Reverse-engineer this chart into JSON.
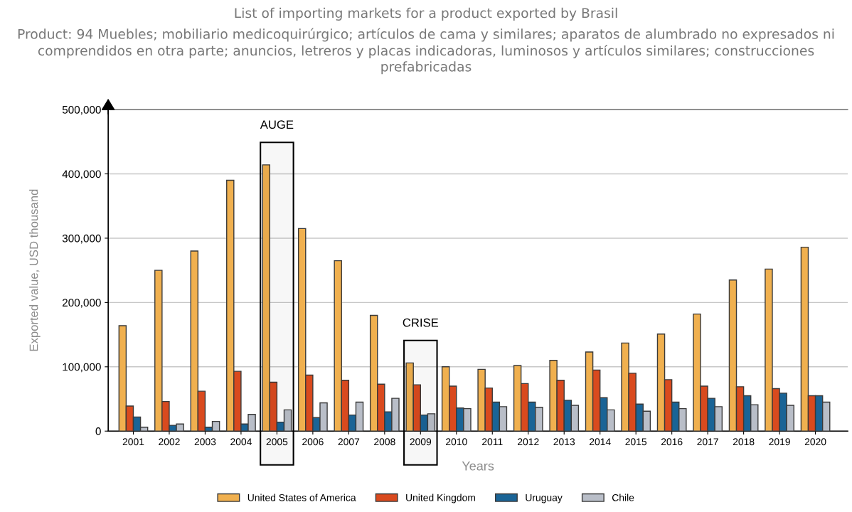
{
  "chart_data": {
    "type": "bar",
    "title": "List of importing markets for a product exported by Brasil",
    "subtitle": "Product: 94 Muebles; mobiliario medicoquirúrgico; artículos de cama y similares; aparatos de alumbrado no expresados ni comprendidos en otra parte; anuncios, letreros y placas indicadoras, luminosos y artículos similares; construcciones prefabricadas",
    "xlabel": "Years",
    "ylabel": "Exported value, USD thousand",
    "categories": [
      "2001",
      "2002",
      "2003",
      "2004",
      "2005",
      "2006",
      "2007",
      "2008",
      "2009",
      "2010",
      "2011",
      "2012",
      "2013",
      "2014",
      "2015",
      "2016",
      "2017",
      "2018",
      "2019",
      "2020"
    ],
    "series": [
      {
        "name": "United States of America",
        "color": "#f0b04f",
        "values": [
          164000,
          250000,
          280000,
          390000,
          414000,
          315000,
          265000,
          180000,
          106000,
          100000,
          96000,
          102000,
          110000,
          123000,
          137000,
          151000,
          182000,
          235000,
          252000,
          286000
        ]
      },
      {
        "name": "United Kingdom",
        "color": "#d94a1e",
        "values": [
          39000,
          46000,
          62000,
          93000,
          76000,
          87000,
          79000,
          73000,
          72000,
          70000,
          67000,
          74000,
          79000,
          95000,
          90000,
          80000,
          70000,
          69000,
          66000,
          55000
        ]
      },
      {
        "name": "Uruguay",
        "color": "#1a6496",
        "values": [
          22000,
          9000,
          6000,
          11000,
          14000,
          21000,
          25000,
          30000,
          25000,
          36000,
          45000,
          45000,
          48000,
          52000,
          42000,
          45000,
          51000,
          55000,
          59000,
          55000
        ]
      },
      {
        "name": "Chile",
        "color": "#b9bec8",
        "values": [
          6000,
          11000,
          15000,
          26000,
          33000,
          44000,
          45000,
          51000,
          27000,
          35000,
          38000,
          37000,
          40000,
          33000,
          31000,
          35000,
          38000,
          41000,
          40000,
          45000
        ]
      }
    ],
    "ylim": [
      0,
      500000
    ],
    "yticks": [
      0,
      {
        "value": 100000,
        "label": "100,000"
      },
      {
        "value": 200000,
        "label": "200,000"
      },
      {
        "value": 300000,
        "label": "300,000"
      },
      {
        "value": 400000,
        "label": "400,000"
      },
      {
        "value": 500000,
        "label": "500,000"
      }
    ],
    "grid": "y",
    "legend": "bottom",
    "bands": [
      {
        "axis": "x",
        "from": "2005",
        "to": "2005",
        "label": "AUGE",
        "color": "#000000"
      },
      {
        "axis": "x",
        "from": "2009",
        "to": "2009",
        "label": "CRISE",
        "color": "#000000"
      }
    ]
  }
}
